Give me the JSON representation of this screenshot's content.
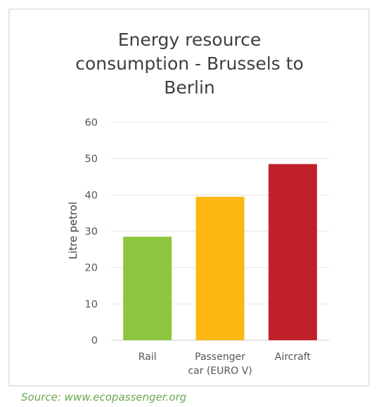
{
  "chart_data": {
    "type": "bar",
    "title_lines": [
      "Energy resource",
      "consumption - Brussels to",
      "Berlin"
    ],
    "ylabel": "Litre petrol",
    "xlabel": "",
    "categories": [
      [
        "Rail"
      ],
      [
        "Passenger",
        "car (EURO V)"
      ],
      [
        "Aircraft"
      ]
    ],
    "values": [
      28.5,
      39.5,
      48.5
    ],
    "colors": [
      "#8cc63f",
      "#fdb813",
      "#c0202a"
    ],
    "ylim": [
      0,
      60
    ],
    "yticks": [
      "0",
      "10",
      "20",
      "30",
      "40",
      "50",
      "60"
    ],
    "grid": true
  },
  "source": "Source:  www.ecopassenger.org"
}
